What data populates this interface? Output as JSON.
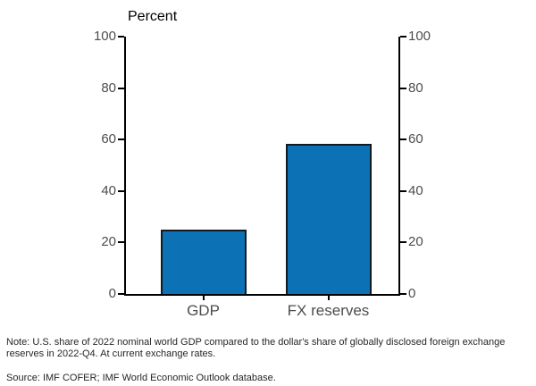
{
  "chart_data": {
    "type": "bar",
    "title": "Percent",
    "categories": [
      "GDP",
      "FX reserves"
    ],
    "values": [
      25,
      58.5
    ],
    "xlabel": "",
    "ylabel": "Percent",
    "ylim": [
      0,
      100
    ],
    "yticks": [
      0,
      20,
      40,
      60,
      80,
      100
    ],
    "grid": false,
    "legend_position": "none",
    "axes": "left-and-right-mirrored, ticks outward",
    "colors": {
      "bar_fill": "#0d72b5",
      "bar_edge": "#131a22",
      "axis": "#000000",
      "tick_label": "#4d4d4d",
      "title": "#000000"
    }
  },
  "footnotes": {
    "note": "Note: U.S. share of 2022 nominal world GDP compared to the dollar's share of globally disclosed foreign exchange reserves in 2022-Q4. At current exchange rates.",
    "source": "Source: IMF COFER; IMF World Economic Outlook database."
  }
}
